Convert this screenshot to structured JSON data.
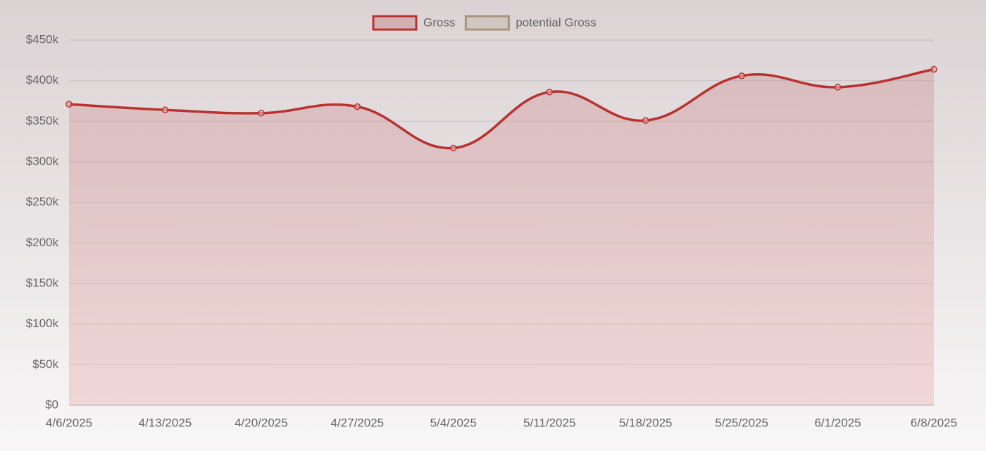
{
  "chart_data": {
    "type": "line",
    "categories": [
      "4/6/2025",
      "4/13/2025",
      "4/20/2025",
      "4/27/2025",
      "5/4/2025",
      "5/11/2025",
      "5/18/2025",
      "5/25/2025",
      "6/1/2025",
      "6/8/2025"
    ],
    "series": [
      {
        "name": "Gross",
        "color": "#b83232",
        "values": [
          371000,
          364000,
          360000,
          368000,
          317000,
          386000,
          351000,
          406000,
          392000,
          414000
        ]
      },
      {
        "name": "potential Gross",
        "color": "#a8957a",
        "values": [
          null,
          null,
          null,
          null,
          null,
          null,
          null,
          null,
          null,
          null
        ]
      }
    ],
    "ylim": [
      0,
      450000
    ],
    "yticks": [
      {
        "value": 0,
        "label": "$0"
      },
      {
        "value": 50000,
        "label": "$50k"
      },
      {
        "value": 100000,
        "label": "$100k"
      },
      {
        "value": 150000,
        "label": "$150k"
      },
      {
        "value": 200000,
        "label": "$200k"
      },
      {
        "value": 250000,
        "label": "$250k"
      },
      {
        "value": 300000,
        "label": "$300k"
      },
      {
        "value": 350000,
        "label": "$350k"
      },
      {
        "value": 400000,
        "label": "$400k"
      },
      {
        "value": 450000,
        "label": "$450k"
      }
    ],
    "grid": true,
    "legend": "top"
  }
}
